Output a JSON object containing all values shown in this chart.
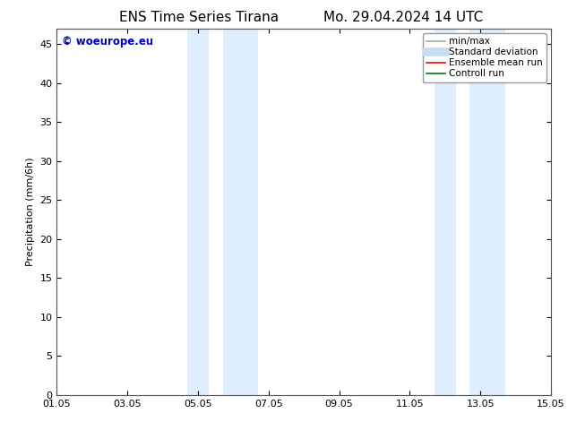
{
  "title_left": "ENS Time Series Tirana",
  "title_right": "Mo. 29.04.2024 14 UTC",
  "ylabel": "Precipitation (mm/6h)",
  "xlim": [
    0,
    14
  ],
  "ylim": [
    0,
    47
  ],
  "yticks": [
    0,
    5,
    10,
    15,
    20,
    25,
    30,
    35,
    40,
    45
  ],
  "xtick_labels": [
    "01.05",
    "03.05",
    "05.05",
    "07.05",
    "09.05",
    "11.05",
    "13.05",
    "15.05"
  ],
  "xtick_positions": [
    0,
    2,
    4,
    6,
    8,
    10,
    12,
    14
  ],
  "shaded_bands": [
    {
      "x_start": 3.7,
      "x_end": 4.3
    },
    {
      "x_start": 4.7,
      "x_end": 5.7
    },
    {
      "x_start": 10.7,
      "x_end": 11.3
    },
    {
      "x_start": 11.7,
      "x_end": 12.7
    }
  ],
  "shaded_color": "#ddeeff",
  "background_color": "#ffffff",
  "watermark_text": "© woeurope.eu",
  "watermark_color": "#0000cc",
  "legend_entries": [
    {
      "label": "min/max",
      "color": "#aaaaaa",
      "lw": 1.2
    },
    {
      "label": "Standard deviation",
      "color": "#c8ddf0",
      "lw": 7
    },
    {
      "label": "Ensemble mean run",
      "color": "#ff0000",
      "lw": 1.2
    },
    {
      "label": "Controll run",
      "color": "#008000",
      "lw": 1.2
    }
  ],
  "title_fontsize": 11,
  "tick_fontsize": 8,
  "ylabel_fontsize": 8,
  "legend_fontsize": 7.5,
  "watermark_fontsize": 8.5
}
